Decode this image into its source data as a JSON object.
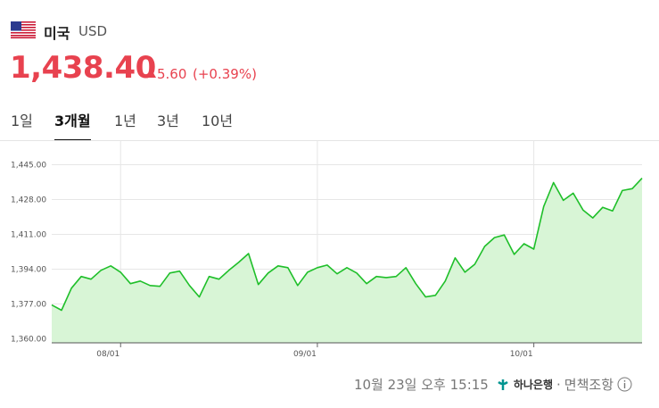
{
  "header": {
    "country": "미국",
    "currency": "USD",
    "price": "1,438.40",
    "change": "5.60",
    "change_percent": "(+0.39%)"
  },
  "tabs": [
    "1일",
    "3개월",
    "1년",
    "3년",
    "10년"
  ],
  "selected_tab": "3개월",
  "footer": {
    "timestamp": "10월 23일 오후 15:15",
    "bank": "하나은행",
    "separator": "·",
    "disclaimer": "면책조항"
  },
  "chart_data": {
    "type": "line",
    "color": "#1fbf2a",
    "fill_color": "#d8f5d6",
    "categories": [
      null,
      null,
      null,
      null,
      null,
      null,
      null,
      "08/01",
      null,
      null,
      null,
      null,
      null,
      null,
      null,
      null,
      null,
      null,
      null,
      null,
      null,
      null,
      null,
      null,
      null,
      null,
      null,
      "09/01",
      null,
      null,
      null,
      null,
      null,
      null,
      null,
      null,
      null,
      null,
      null,
      null,
      null,
      null,
      null,
      null,
      null,
      null,
      null,
      null,
      null,
      "10/01",
      null,
      null,
      null,
      null,
      null,
      null,
      null,
      null,
      null,
      null,
      null
    ],
    "values": [
      1376.5,
      1373.9,
      1384.7,
      1390.4,
      1389.1,
      1393.4,
      1395.6,
      1392.5,
      1386.9,
      1388.2,
      1386.0,
      1385.6,
      1392.1,
      1393.0,
      1386.0,
      1380.4,
      1390.4,
      1389.1,
      1393.4,
      1397.3,
      1401.6,
      1386.5,
      1392.1,
      1395.6,
      1394.7,
      1386.0,
      1392.5,
      1394.7,
      1396.0,
      1391.7,
      1394.7,
      1392.1,
      1386.9,
      1390.4,
      1389.9,
      1390.4,
      1394.7,
      1386.9,
      1380.4,
      1381.2,
      1388.2,
      1399.5,
      1392.5,
      1396.4,
      1405.1,
      1409.4,
      1410.7,
      1401.2,
      1406.4,
      1403.8,
      1424.6,
      1436.3,
      1427.6,
      1431.1,
      1422.9,
      1419.0,
      1424.2,
      1422.4,
      1432.4,
      1433.3,
      1438.4
    ],
    "ylim": [
      1358,
      1457
    ],
    "yticks": [
      {
        "value": 1360,
        "label": "1,360.00"
      },
      {
        "value": 1377,
        "label": "1,377.00"
      },
      {
        "value": 1394,
        "label": "1,394.00"
      },
      {
        "value": 1411,
        "label": "1,411.00"
      },
      {
        "value": 1428,
        "label": "1,428.00"
      },
      {
        "value": 1445,
        "label": "1,445.00"
      }
    ],
    "grid": true
  }
}
